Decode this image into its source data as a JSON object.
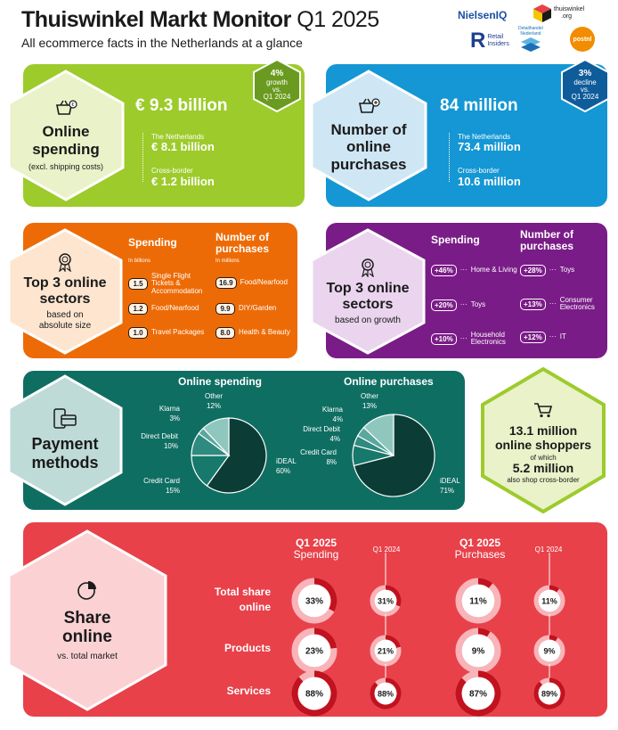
{
  "header": {
    "title": "Thuiswinkel Markt Monitor",
    "quarter": "Q1 2025",
    "subtitle": "All ecommerce facts in the Netherlands at a glance"
  },
  "logos": {
    "nielseniq": "NielsenIQ",
    "thuiswinkel": "thuiswinkel",
    "thuiswinkel_org": ".org",
    "retail_insiders_1": "Retail",
    "retail_insiders_2": "Insiders",
    "detailhandel_1": "Detailhandel",
    "detailhandel_2": "Nederland",
    "postnl": "postnl"
  },
  "spending": {
    "title_1": "Online",
    "title_2": "spending",
    "note": "(excl. shipping costs)",
    "total": "€ 9.3 billion",
    "nl_label": "The Netherlands",
    "nl_value": "€ 8.1 billion",
    "cb_label": "Cross-border",
    "cb_value": "€ 1.2 billion",
    "badge_1": "4%",
    "badge_2": "growth",
    "badge_3": "vs.",
    "badge_4": "Q1 2024"
  },
  "purchases": {
    "title_1": "Number of",
    "title_2": "online",
    "title_3": "purchases",
    "total": "84 million",
    "nl_label": "The Netherlands",
    "nl_value": "73.4 million",
    "cb_label": "Cross-border",
    "cb_value": "10.6 million",
    "badge_1": "3%",
    "badge_2": "decline",
    "badge_3": "vs.",
    "badge_4": "Q1 2024"
  },
  "top3_size": {
    "title_1": "Top 3 online",
    "title_2": "sectors",
    "sub_1": "based on",
    "sub_2": "absolute size",
    "spending_head": "Spending",
    "spending_unit": "In billions",
    "purchases_head_1": "Number of",
    "purchases_head_2": "purchases",
    "purchases_unit": "In millions",
    "spending": [
      {
        "value": "1.5",
        "label_1": "Single Flight",
        "label_2": "Tickets &",
        "label_3": "Accommodation"
      },
      {
        "value": "1.2",
        "label_1": "Food/Nearfood",
        "label_2": "",
        "label_3": ""
      },
      {
        "value": "1.0",
        "label_1": "Travel Packages",
        "label_2": "",
        "label_3": ""
      }
    ],
    "purchases": [
      {
        "value": "16.9",
        "label": "Food/Nearfood"
      },
      {
        "value": "9.9",
        "label": "DIY/Garden"
      },
      {
        "value": "8.0",
        "label": "Health & Beauty"
      }
    ]
  },
  "top3_growth": {
    "title_1": "Top 3 online",
    "title_2": "sectors",
    "sub": "based on growth",
    "spending_head": "Spending",
    "purchases_head_1": "Number of",
    "purchases_head_2": "purchases",
    "spending": [
      {
        "value": "+46%",
        "label_1": "Home & Living",
        "label_2": ""
      },
      {
        "value": "+20%",
        "label_1": "Toys",
        "label_2": ""
      },
      {
        "value": "+10%",
        "label_1": "Household",
        "label_2": "Electronics"
      }
    ],
    "purchases": [
      {
        "value": "+28%",
        "label_1": "Toys",
        "label_2": ""
      },
      {
        "value": "+13%",
        "label_1": "Consumer",
        "label_2": "Electronics"
      },
      {
        "value": "+12%",
        "label_1": "IT",
        "label_2": ""
      }
    ]
  },
  "payment": {
    "title_1": "Payment",
    "title_2": "methods",
    "spending_title": "Online spending",
    "purchases_title": "Online purchases"
  },
  "chart_data": [
    {
      "type": "pie",
      "title": "Online spending",
      "categories": [
        "iDEAL",
        "Credit Card",
        "Direct Debit",
        "Klarna",
        "Other"
      ],
      "values": [
        60,
        15,
        10,
        3,
        12
      ],
      "labels": [
        "60%",
        "15%",
        "10%",
        "3%",
        "12%"
      ]
    },
    {
      "type": "pie",
      "title": "Online purchases",
      "categories": [
        "iDEAL",
        "Credit Card",
        "Direct Debit",
        "Klarna",
        "Other"
      ],
      "values": [
        71,
        8,
        4,
        4,
        13
      ],
      "labels": [
        "71%",
        "8%",
        "4%",
        "4%",
        "13%"
      ]
    },
    {
      "type": "pie",
      "title": "Share online",
      "series": [
        {
          "name": "Q1 2025 Spending",
          "values": [
            33,
            23,
            88
          ],
          "labels": [
            "33%",
            "23%",
            "88%"
          ]
        },
        {
          "name": "Q1 2024",
          "values": [
            31,
            21,
            88
          ],
          "labels": [
            "31%",
            "21%",
            "88%"
          ]
        },
        {
          "name": "Q1 2025 Purchases",
          "values": [
            11,
            9,
            87
          ],
          "labels": [
            "11%",
            "9%",
            "87%"
          ]
        },
        {
          "name": "Q1 2024",
          "values": [
            11,
            9,
            89
          ],
          "labels": [
            "11%",
            "9%",
            "89%"
          ]
        }
      ],
      "categories": [
        "Total share online",
        "Products",
        "Services"
      ]
    }
  ],
  "shoppers": {
    "line_1": "13.1 million",
    "line_2": "online shoppers",
    "line_3": "of which",
    "line_4": "5.2 million",
    "line_5": "also shop cross-border"
  },
  "share": {
    "title_1": "Share",
    "title_2": "online",
    "sub": "vs. total market",
    "col_1a": "Q1 2025",
    "col_1b": "Spending",
    "col_2": "Q1 2024",
    "col_3a": "Q1 2025",
    "col_3b": "Purchases",
    "col_4": "Q1 2024",
    "row_1a": "Total share",
    "row_1b": "online",
    "row_2": "Products",
    "row_3": "Services"
  },
  "colors": {
    "lime": "#9dcb2b",
    "lime_hex": "#e9f2c9",
    "blue": "#1497d4",
    "blue_hex": "#cfe6f4",
    "orange": "#ed6b06",
    "orange_hex": "#fde5cf",
    "purple": "#7a1c87",
    "purple_hex": "#ead4ee",
    "teal": "#0f6e62",
    "teal_hex": "#bedbd7",
    "red": "#e8414a",
    "red_hex": "#fbd1d4"
  }
}
